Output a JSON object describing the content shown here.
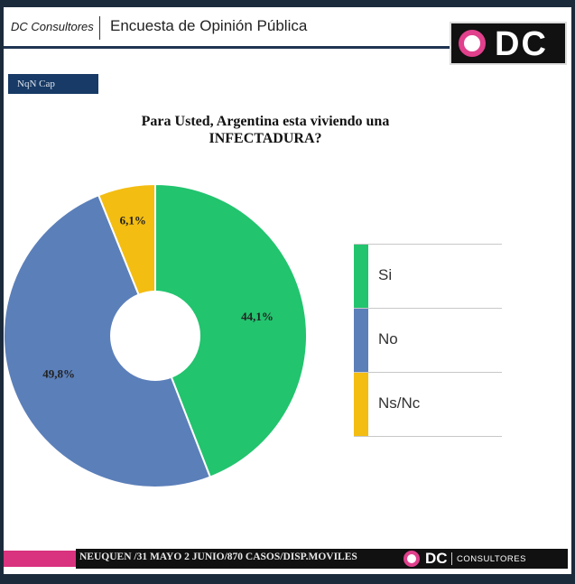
{
  "header": {
    "brand": "DC Consultores",
    "survey_title": "Encuesta de Opinión Pública",
    "logo_text": "DC"
  },
  "badge": "NqN Cap",
  "question": "Para Usted, Argentina esta viviendo una INFECTADURA?",
  "colors": {
    "si": "#22c46e",
    "no": "#5b7fb9",
    "nsnc": "#f3bd12",
    "brand_pink": "#d9327e",
    "navy": "#1f3552"
  },
  "chart_data": {
    "type": "pie",
    "style": "donut",
    "categories": [
      "Si",
      "No",
      "Ns/Nc"
    ],
    "values": [
      44.1,
      49.8,
      6.1
    ],
    "value_labels": [
      "44,1%",
      "49,8%",
      "6,1%"
    ],
    "title": "Para Usted, Argentina esta viviendo una INFECTADURA?",
    "legend_placement": "right"
  },
  "legend": [
    {
      "label": "Si"
    },
    {
      "label": "No"
    },
    {
      "label": "Ns/Nc"
    }
  ],
  "footer": {
    "text": "NEUQUEN /31 MAYO 2 JUNIO/870 CASOS/DISP.MOVILES",
    "logo_dc": "DC",
    "logo_consultores": "CONSULTORES"
  }
}
